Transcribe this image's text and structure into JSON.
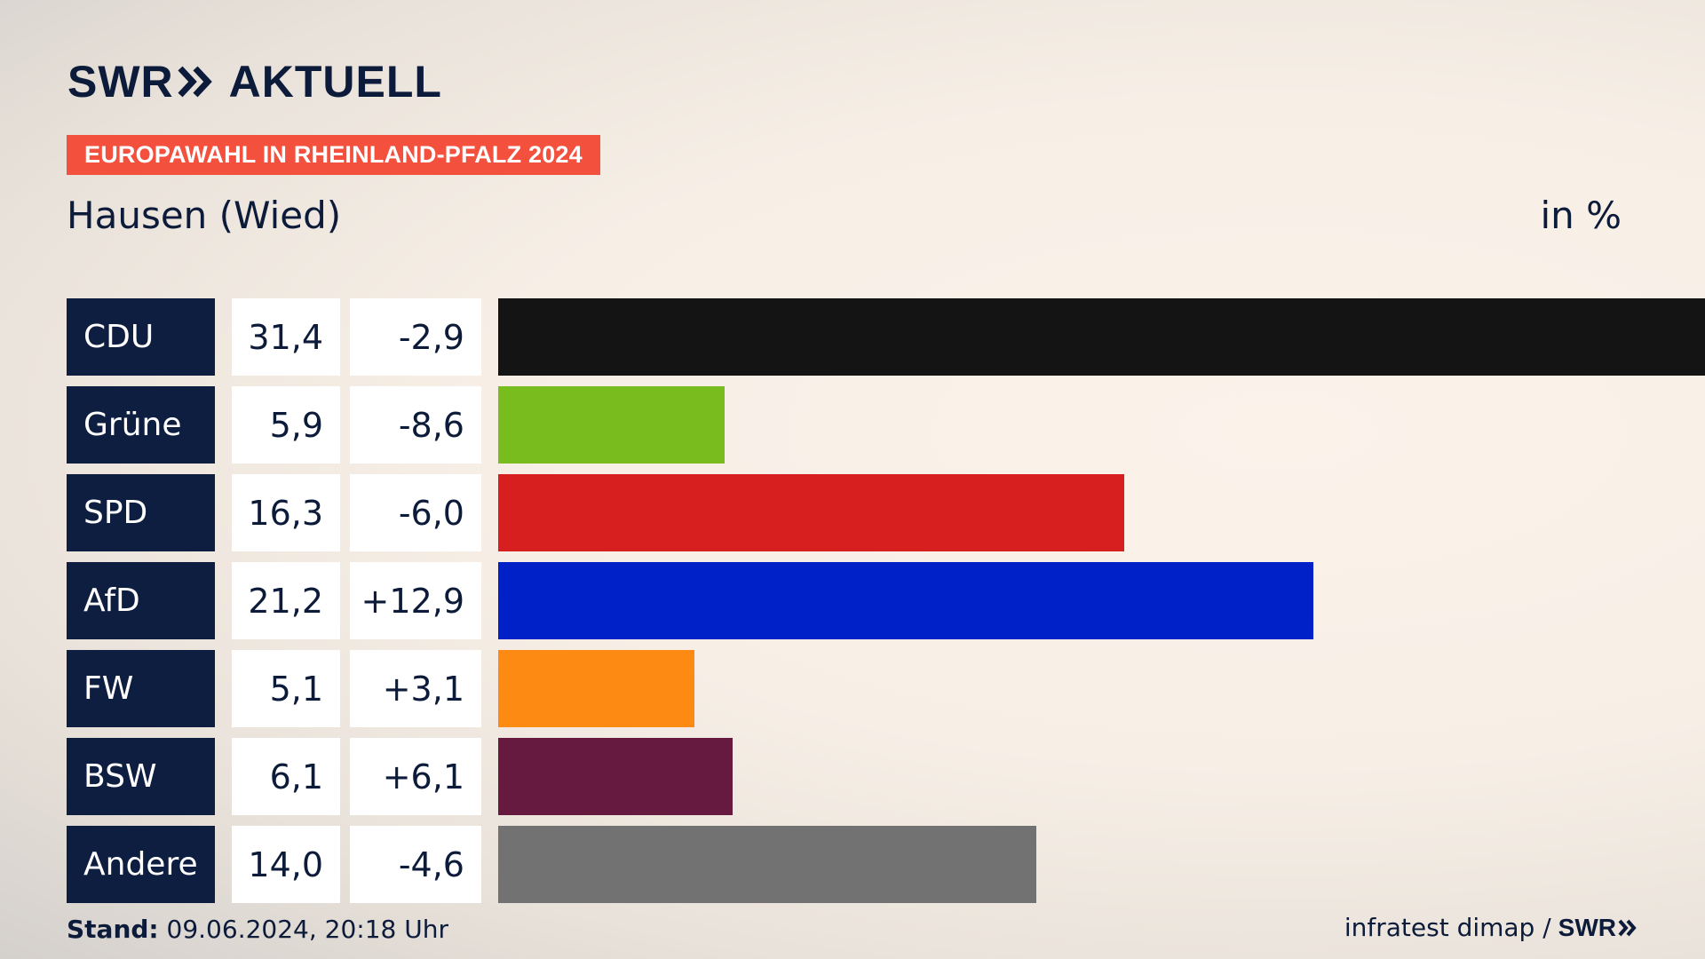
{
  "header": {
    "brand_main": "SWR",
    "brand_sub": "AKTUELL",
    "tag": "EUROPAWAHL IN RHEINLAND-PFALZ 2024",
    "location": "Hausen (Wied)",
    "unit": "in %"
  },
  "chart_data": {
    "type": "bar",
    "title": "Europawahl in Rheinland-Pfalz 2024 – Hausen (Wied)",
    "unit": "in %",
    "categories": [
      "CDU",
      "Grüne",
      "SPD",
      "AfD",
      "FW",
      "BSW",
      "Andere"
    ],
    "values": [
      31.4,
      5.9,
      16.3,
      21.2,
      5.1,
      6.1,
      14.0
    ],
    "value_labels": [
      "31,4",
      "5,9",
      "16,3",
      "21,2",
      "5,1",
      "6,1",
      "14,0"
    ],
    "change_labels": [
      "-2,9",
      "-8,6",
      "-6,0",
      "+12,9",
      "+3,1",
      "+6,1",
      "-4,6"
    ],
    "colors": [
      "#141414",
      "#78bc1e",
      "#d71f1f",
      "#0021c8",
      "#fd8a13",
      "#671a3f",
      "#727272"
    ],
    "xlim": [
      0,
      31.4
    ]
  },
  "footer": {
    "stand_label": "Stand:",
    "stand_value": "09.06.2024, 20:18 Uhr",
    "source": "infratest dimap /",
    "source_brand": "SWR"
  }
}
